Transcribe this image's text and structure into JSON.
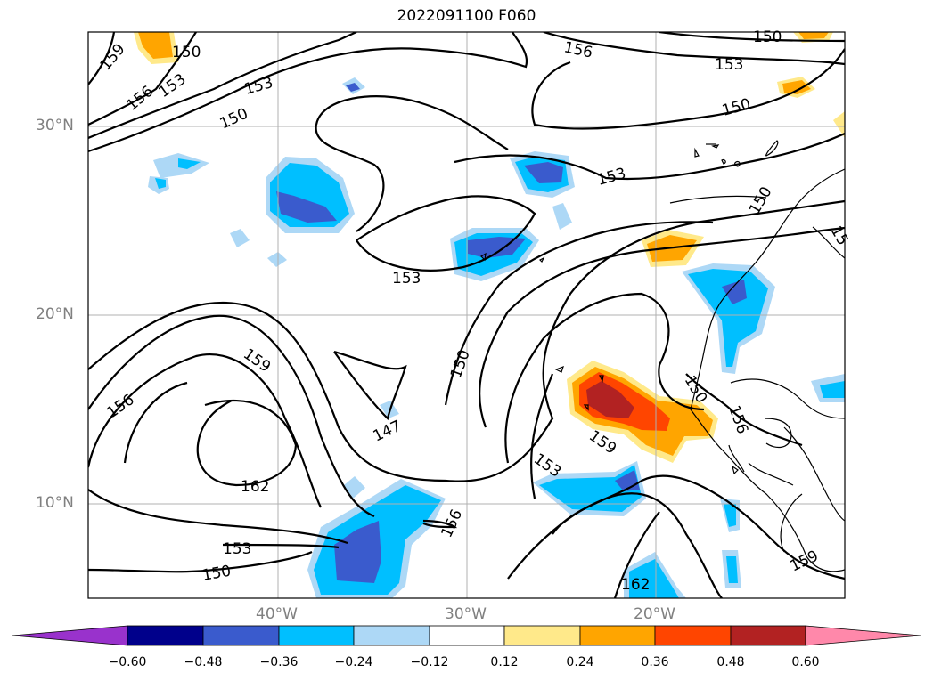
{
  "title": "2022091100 F060",
  "axes": {
    "lat_labels": [
      "30°N",
      "20°N",
      "10°N"
    ],
    "lon_labels": [
      "40°W",
      "30°W",
      "20°W"
    ]
  },
  "contour_labels": [
    "159",
    "156",
    "153",
    "150",
    "153",
    "150",
    "156",
    "150",
    "153",
    "150",
    "153",
    "150",
    "15",
    "153",
    "150",
    "159",
    "156",
    "162",
    "147",
    "150",
    "156",
    "159",
    "153",
    "153",
    "150",
    "156",
    "162",
    "159",
    "153"
  ],
  "colorbar": {
    "ticks": [
      "−0.60",
      "−0.48",
      "−0.36",
      "−0.24",
      "−0.12",
      "0.12",
      "0.24",
      "0.36",
      "0.48",
      "0.60"
    ],
    "colors": [
      "#9932cc",
      "#00008b",
      "#3a5bcd",
      "#00bfff",
      "#add8f6",
      "#ffffff",
      "#ffe98a",
      "#ffa500",
      "#ff4500",
      "#b22222",
      "#ff88aa"
    ]
  },
  "colors": {
    "land_outline": "#000000",
    "contour": "#000000",
    "grid": "#b0b0b0"
  }
}
